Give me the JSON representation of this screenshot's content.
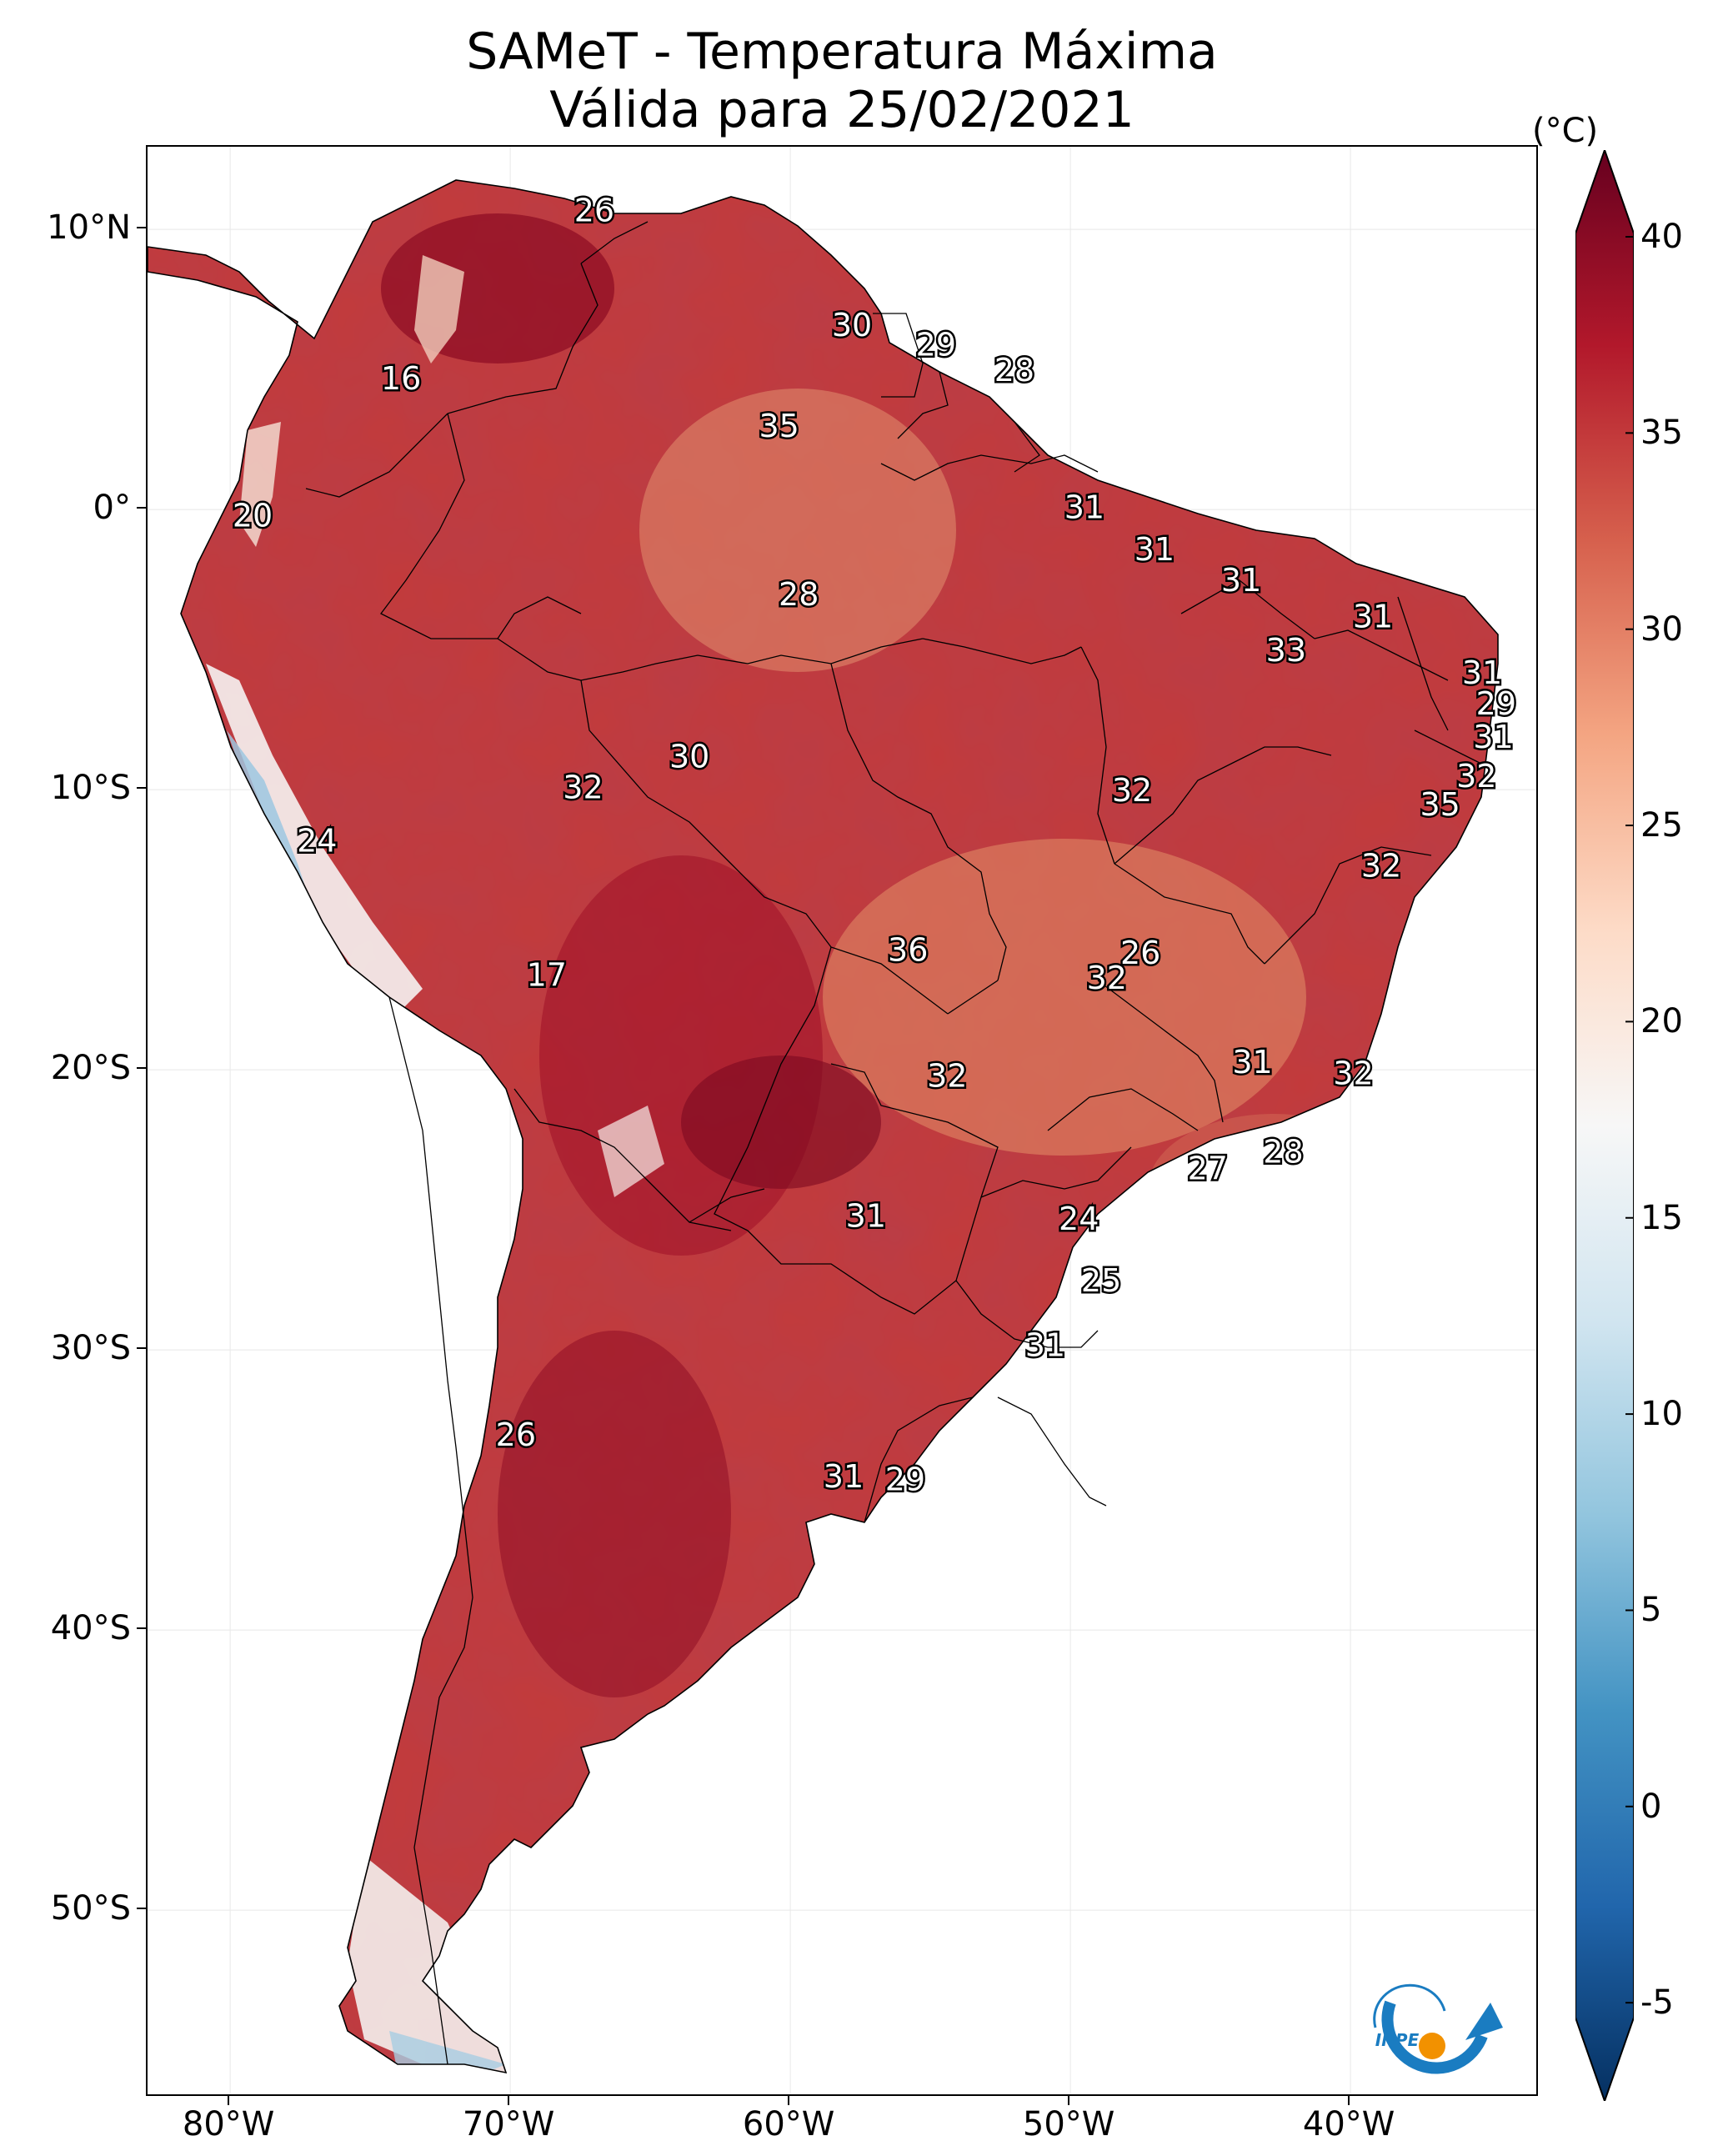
{
  "title_line1": "SAMeT - Temperatura Máxima",
  "title_line2": "Válida para 25/02/2021",
  "colorbar": {
    "unit": "(°C)",
    "tick_labels": [
      "40",
      "35",
      "30",
      "25",
      "20",
      "15",
      "10",
      "5",
      "0",
      "-5"
    ],
    "colors_high_to_low": [
      "#67001f",
      "#b2182b",
      "#d6604d",
      "#f4a582",
      "#fddbc7",
      "#f7f7f7",
      "#d1e5f0",
      "#92c5de",
      "#4393c3",
      "#2166ac",
      "#053061"
    ]
  },
  "lat_labels": [
    "10°N",
    "0°",
    "10°S",
    "20°S",
    "30°S",
    "40°S",
    "50°S"
  ],
  "lon_labels": [
    "80°W",
    "70°W",
    "60°W",
    "50°W",
    "40°W"
  ],
  "logo": {
    "text": "INPE",
    "ring_color": "#1a7cc1",
    "dot_color": "#f29100"
  },
  "map_values": [
    {
      "text": "26",
      "lon": -67.0,
      "lat": 10.6
    },
    {
      "text": "16",
      "lon": -73.9,
      "lat": 4.6
    },
    {
      "text": "30",
      "lon": -57.8,
      "lat": 6.5
    },
    {
      "text": "29",
      "lon": -54.8,
      "lat": 5.8
    },
    {
      "text": "28",
      "lon": -52.0,
      "lat": 4.9
    },
    {
      "text": "35",
      "lon": -60.4,
      "lat": 2.9
    },
    {
      "text": "20",
      "lon": -79.2,
      "lat": -0.3
    },
    {
      "text": "31",
      "lon": -49.5,
      "lat": 0.0
    },
    {
      "text": "31",
      "lon": -47.0,
      "lat": -1.5
    },
    {
      "text": "31",
      "lon": -43.9,
      "lat": -2.6
    },
    {
      "text": "28",
      "lon": -59.7,
      "lat": -3.1
    },
    {
      "text": "31",
      "lon": -39.2,
      "lat": -3.9
    },
    {
      "text": "33",
      "lon": -42.3,
      "lat": -5.1
    },
    {
      "text": "31",
      "lon": -35.3,
      "lat": -5.9
    },
    {
      "text": "29",
      "lon": -34.8,
      "lat": -7.0
    },
    {
      "text": "31",
      "lon": -34.9,
      "lat": -8.2
    },
    {
      "text": "30",
      "lon": -63.6,
      "lat": -8.9
    },
    {
      "text": "32",
      "lon": -67.4,
      "lat": -10.0
    },
    {
      "text": "32",
      "lon": -47.8,
      "lat": -10.1
    },
    {
      "text": "32",
      "lon": -35.5,
      "lat": -9.6
    },
    {
      "text": "35",
      "lon": -36.8,
      "lat": -10.6
    },
    {
      "text": "24",
      "lon": -76.9,
      "lat": -11.9
    },
    {
      "text": "32",
      "lon": -38.9,
      "lat": -12.8
    },
    {
      "text": "36",
      "lon": -55.8,
      "lat": -15.8
    },
    {
      "text": "26",
      "lon": -47.5,
      "lat": -15.9
    },
    {
      "text": "32",
      "lon": -48.7,
      "lat": -16.8
    },
    {
      "text": "17",
      "lon": -68.7,
      "lat": -16.7
    },
    {
      "text": "31",
      "lon": -43.5,
      "lat": -19.8
    },
    {
      "text": "32",
      "lon": -39.9,
      "lat": -20.2
    },
    {
      "text": "32",
      "lon": -54.4,
      "lat": -20.3
    },
    {
      "text": "28",
      "lon": -42.4,
      "lat": -23.0
    },
    {
      "text": "27",
      "lon": -45.1,
      "lat": -23.6
    },
    {
      "text": "31",
      "lon": -57.3,
      "lat": -25.3
    },
    {
      "text": "24",
      "lon": -49.7,
      "lat": -25.4
    },
    {
      "text": "25",
      "lon": -48.9,
      "lat": -27.6
    },
    {
      "text": "31",
      "lon": -50.9,
      "lat": -29.9
    },
    {
      "text": "26",
      "lon": -69.8,
      "lat": -33.1
    },
    {
      "text": "31",
      "lon": -58.1,
      "lat": -34.6
    },
    {
      "text": "29",
      "lon": -55.9,
      "lat": -34.7
    }
  ]
}
